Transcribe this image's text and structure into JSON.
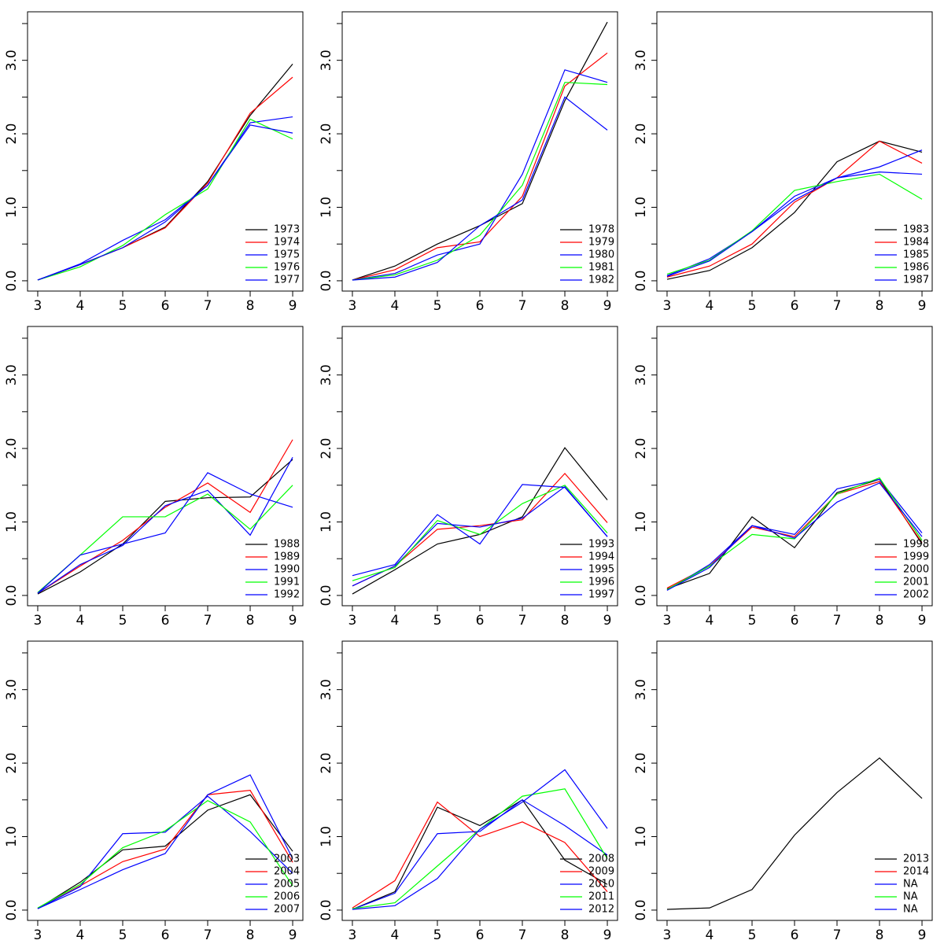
{
  "chart_data": [
    {
      "type": "line",
      "x": [
        3,
        4,
        5,
        6,
        7,
        8,
        9
      ],
      "xlim": [
        2.76,
        9.24
      ],
      "xticks": [
        3,
        4,
        5,
        6,
        7,
        8,
        9
      ],
      "ylim": [
        -0.14,
        3.66
      ],
      "yticks": [
        {
          "value": 0,
          "label": "0.0"
        },
        {
          "value": 1,
          "label": "1.0"
        },
        {
          "value": 2,
          "label": "2.0"
        },
        {
          "value": 3,
          "label": "3.0"
        }
      ],
      "yticks_minor": [
        0.5,
        1.5,
        2.5,
        3.5
      ],
      "legend": "bottomright",
      "series": [
        {
          "name": "1973",
          "color": "#000000",
          "values": [
            0.01,
            0.22,
            0.45,
            0.73,
            1.35,
            2.25,
            2.95
          ]
        },
        {
          "name": "1974",
          "color": "#ff0000",
          "values": [
            0.01,
            0.22,
            0.45,
            0.72,
            1.33,
            2.28,
            2.77
          ]
        },
        {
          "name": "1975",
          "color": "#0000ff",
          "values": [
            0.01,
            0.23,
            0.55,
            0.83,
            1.3,
            2.15,
            2.23
          ]
        },
        {
          "name": "1976",
          "color": "#00ff00",
          "values": [
            0.01,
            0.19,
            0.48,
            0.9,
            1.25,
            2.2,
            1.93
          ]
        },
        {
          "name": "1977",
          "color": "#0000ff",
          "values": [
            0.01,
            0.22,
            0.45,
            0.8,
            1.3,
            2.12,
            2.01
          ]
        }
      ]
    },
    {
      "type": "line",
      "x": [
        3,
        4,
        5,
        6,
        7,
        8,
        9
      ],
      "xlim": [
        2.76,
        9.24
      ],
      "xticks": [
        3,
        4,
        5,
        6,
        7,
        8,
        9
      ],
      "ylim": [
        -0.14,
        3.66
      ],
      "yticks": [
        {
          "value": 0,
          "label": "0.0"
        },
        {
          "value": 1,
          "label": "1.0"
        },
        {
          "value": 2,
          "label": "2.0"
        },
        {
          "value": 3,
          "label": "3.0"
        }
      ],
      "yticks_minor": [
        0.5,
        1.5,
        2.5,
        3.5
      ],
      "legend": "bottomright",
      "series": [
        {
          "name": "1978",
          "color": "#000000",
          "values": [
            0.01,
            0.2,
            0.5,
            0.75,
            1.05,
            2.45,
            3.52
          ]
        },
        {
          "name": "1979",
          "color": "#ff0000",
          "values": [
            0.01,
            0.15,
            0.45,
            0.53,
            1.15,
            2.65,
            3.1
          ]
        },
        {
          "name": "1980",
          "color": "#0000ff",
          "values": [
            0.01,
            0.1,
            0.35,
            0.5,
            1.45,
            2.87,
            2.7
          ]
        },
        {
          "name": "1981",
          "color": "#00ff00",
          "values": [
            0.01,
            0.08,
            0.28,
            0.62,
            1.3,
            2.7,
            2.67
          ]
        },
        {
          "name": "1982",
          "color": "#0000ff",
          "values": [
            0.01,
            0.05,
            0.25,
            0.75,
            1.1,
            2.5,
            2.05
          ]
        }
      ]
    },
    {
      "type": "line",
      "x": [
        3,
        4,
        5,
        6,
        7,
        8,
        9
      ],
      "xlim": [
        2.76,
        9.24
      ],
      "xticks": [
        3,
        4,
        5,
        6,
        7,
        8,
        9
      ],
      "ylim": [
        -0.14,
        3.66
      ],
      "yticks": [
        {
          "value": 0,
          "label": "0.0"
        },
        {
          "value": 1,
          "label": "1.0"
        },
        {
          "value": 2,
          "label": "2.0"
        },
        {
          "value": 3,
          "label": "3.0"
        }
      ],
      "yticks_minor": [
        0.5,
        1.5,
        2.5,
        3.5
      ],
      "legend": "bottomright",
      "series": [
        {
          "name": "1983",
          "color": "#000000",
          "values": [
            0.02,
            0.14,
            0.45,
            0.93,
            1.62,
            1.9,
            1.75
          ]
        },
        {
          "name": "1984",
          "color": "#ff0000",
          "values": [
            0.05,
            0.2,
            0.5,
            1.07,
            1.4,
            1.9,
            1.6
          ]
        },
        {
          "name": "1985",
          "color": "#0000ff",
          "values": [
            0.07,
            0.3,
            0.67,
            1.15,
            1.4,
            1.55,
            1.78
          ]
        },
        {
          "name": "1986",
          "color": "#00ff00",
          "values": [
            0.09,
            0.28,
            0.68,
            1.23,
            1.35,
            1.45,
            1.11
          ]
        },
        {
          "name": "1987",
          "color": "#0000ff",
          "values": [
            0.06,
            0.27,
            0.67,
            1.1,
            1.4,
            1.48,
            1.45
          ]
        }
      ]
    },
    {
      "type": "line",
      "x": [
        3,
        4,
        5,
        6,
        7,
        8,
        9
      ],
      "xlim": [
        2.76,
        9.24
      ],
      "xticks": [
        3,
        4,
        5,
        6,
        7,
        8,
        9
      ],
      "ylim": [
        -0.14,
        3.66
      ],
      "yticks": [
        {
          "value": 0,
          "label": "0.0"
        },
        {
          "value": 1,
          "label": "1.0"
        },
        {
          "value": 2,
          "label": "2.0"
        },
        {
          "value": 3,
          "label": "3.0"
        }
      ],
      "yticks_minor": [
        0.5,
        1.5,
        2.5,
        3.5
      ],
      "legend": "bottomright",
      "series": [
        {
          "name": "1988",
          "color": "#000000",
          "values": [
            0.02,
            0.32,
            0.7,
            1.28,
            1.33,
            1.34,
            1.85
          ]
        },
        {
          "name": "1989",
          "color": "#ff0000",
          "values": [
            0.03,
            0.4,
            0.75,
            1.2,
            1.53,
            1.13,
            2.12
          ]
        },
        {
          "name": "1990",
          "color": "#0000ff",
          "values": [
            0.03,
            0.42,
            0.68,
            1.22,
            1.43,
            0.82,
            1.88
          ]
        },
        {
          "name": "1991",
          "color": "#00ff00",
          "values": [
            0.04,
            0.55,
            1.07,
            1.07,
            1.38,
            0.9,
            1.5
          ]
        },
        {
          "name": "1992",
          "color": "#0000ff",
          "values": [
            0.03,
            0.55,
            0.7,
            0.85,
            1.67,
            1.38,
            1.2
          ]
        }
      ]
    },
    {
      "type": "line",
      "x": [
        3,
        4,
        5,
        6,
        7,
        8,
        9
      ],
      "xlim": [
        2.76,
        9.24
      ],
      "xticks": [
        3,
        4,
        5,
        6,
        7,
        8,
        9
      ],
      "ylim": [
        -0.14,
        3.66
      ],
      "yticks": [
        {
          "value": 0,
          "label": "0.0"
        },
        {
          "value": 1,
          "label": "1.0"
        },
        {
          "value": 2,
          "label": "2.0"
        },
        {
          "value": 3,
          "label": "3.0"
        }
      ],
      "yticks_minor": [
        0.5,
        1.5,
        2.5,
        3.5
      ],
      "legend": "bottomright",
      "series": [
        {
          "name": "1993",
          "color": "#000000",
          "values": [
            0.02,
            0.35,
            0.7,
            0.83,
            1.07,
            2.01,
            1.3
          ]
        },
        {
          "name": "1994",
          "color": "#ff0000",
          "values": [
            0.13,
            0.4,
            0.9,
            0.95,
            1.03,
            1.66,
            0.99
          ]
        },
        {
          "name": "1995",
          "color": "#0000ff",
          "values": [
            0.13,
            0.4,
            0.98,
            0.93,
            1.05,
            1.48,
            0.8
          ]
        },
        {
          "name": "1996",
          "color": "#00ff00",
          "values": [
            0.2,
            0.38,
            1.02,
            0.83,
            1.25,
            1.5,
            0.85
          ]
        },
        {
          "name": "1997",
          "color": "#0000ff",
          "values": [
            0.27,
            0.42,
            1.1,
            0.7,
            1.51,
            1.47,
            0.8
          ]
        }
      ]
    },
    {
      "type": "line",
      "x": [
        3,
        4,
        5,
        6,
        7,
        8,
        9
      ],
      "xlim": [
        2.76,
        9.24
      ],
      "xticks": [
        3,
        4,
        5,
        6,
        7,
        8,
        9
      ],
      "ylim": [
        -0.14,
        3.66
      ],
      "yticks": [
        {
          "value": 0,
          "label": "0.0"
        },
        {
          "value": 1,
          "label": "1.0"
        },
        {
          "value": 2,
          "label": "2.0"
        },
        {
          "value": 3,
          "label": "3.0"
        }
      ],
      "yticks_minor": [
        0.5,
        1.5,
        2.5,
        3.5
      ],
      "legend": "bottomright",
      "series": [
        {
          "name": "1998",
          "color": "#000000",
          "values": [
            0.09,
            0.3,
            1.07,
            0.65,
            1.4,
            1.58,
            0.7
          ]
        },
        {
          "name": "1999",
          "color": "#ff0000",
          "values": [
            0.1,
            0.4,
            0.93,
            0.8,
            1.38,
            1.55,
            0.72
          ]
        },
        {
          "name": "2000",
          "color": "#0000ff",
          "values": [
            0.07,
            0.42,
            0.95,
            0.83,
            1.45,
            1.58,
            0.85
          ]
        },
        {
          "name": "2001",
          "color": "#00ff00",
          "values": [
            0.08,
            0.4,
            0.83,
            0.77,
            1.38,
            1.6,
            0.75
          ]
        },
        {
          "name": "2002",
          "color": "#0000ff",
          "values": [
            0.07,
            0.38,
            0.95,
            0.78,
            1.27,
            1.53,
            0.8
          ]
        }
      ]
    },
    {
      "type": "line",
      "x": [
        3,
        4,
        5,
        6,
        7,
        8,
        9
      ],
      "xlim": [
        2.76,
        9.24
      ],
      "xticks": [
        3,
        4,
        5,
        6,
        7,
        8,
        9
      ],
      "ylim": [
        -0.14,
        3.66
      ],
      "yticks": [
        {
          "value": 0,
          "label": "0.0"
        },
        {
          "value": 1,
          "label": "1.0"
        },
        {
          "value": 2,
          "label": "2.0"
        },
        {
          "value": 3,
          "label": "3.0"
        }
      ],
      "yticks_minor": [
        0.5,
        1.5,
        2.5,
        3.5
      ],
      "legend": "bottomright",
      "series": [
        {
          "name": "2003",
          "color": "#000000",
          "values": [
            0.02,
            0.38,
            0.82,
            0.87,
            1.36,
            1.57,
            0.8
          ]
        },
        {
          "name": "2004",
          "color": "#ff0000",
          "values": [
            0.02,
            0.33,
            0.66,
            0.83,
            1.57,
            1.63,
            0.65
          ]
        },
        {
          "name": "2005",
          "color": "#0000ff",
          "values": [
            0.02,
            0.32,
            1.04,
            1.06,
            1.55,
            1.07,
            0.5
          ]
        },
        {
          "name": "2006",
          "color": "#00ff00",
          "values": [
            0.03,
            0.35,
            0.85,
            1.08,
            1.49,
            1.2,
            0.33
          ]
        },
        {
          "name": "2007",
          "color": "#0000ff",
          "values": [
            0.02,
            0.28,
            0.55,
            0.77,
            1.57,
            1.84,
            0.7
          ]
        }
      ]
    },
    {
      "type": "line",
      "x": [
        3,
        4,
        5,
        6,
        7,
        8,
        9
      ],
      "xlim": [
        2.76,
        9.24
      ],
      "xticks": [
        3,
        4,
        5,
        6,
        7,
        8,
        9
      ],
      "ylim": [
        -0.14,
        3.66
      ],
      "yticks": [
        {
          "value": 0,
          "label": "0.0"
        },
        {
          "value": 1,
          "label": "1.0"
        },
        {
          "value": 2,
          "label": "2.0"
        },
        {
          "value": 3,
          "label": "3.0"
        }
      ],
      "yticks_minor": [
        0.5,
        1.5,
        2.5,
        3.5
      ],
      "legend": "bottomright",
      "series": [
        {
          "name": "2008",
          "color": "#000000",
          "values": [
            0.01,
            0.25,
            1.4,
            1.15,
            1.5,
            0.68,
            0.35
          ]
        },
        {
          "name": "2009",
          "color": "#ff0000",
          "values": [
            0.03,
            0.4,
            1.47,
            1.0,
            1.2,
            0.92,
            0.25
          ]
        },
        {
          "name": "2010",
          "color": "#0000ff",
          "values": [
            0.01,
            0.23,
            1.04,
            1.07,
            1.5,
            1.15,
            0.75
          ]
        },
        {
          "name": "2011",
          "color": "#00ff00",
          "values": [
            0.02,
            0.1,
            0.6,
            1.1,
            1.55,
            1.65,
            0.7
          ]
        },
        {
          "name": "2012",
          "color": "#0000ff",
          "values": [
            0.01,
            0.06,
            0.43,
            1.1,
            1.47,
            1.91,
            1.11
          ]
        }
      ]
    },
    {
      "type": "line",
      "x": [
        3,
        4,
        5,
        6,
        7,
        8,
        9
      ],
      "xlim": [
        2.76,
        9.24
      ],
      "xticks": [
        3,
        4,
        5,
        6,
        7,
        8,
        9
      ],
      "ylim": [
        -0.14,
        3.66
      ],
      "yticks": [
        {
          "value": 0,
          "label": "0.0"
        },
        {
          "value": 1,
          "label": "1.0"
        },
        {
          "value": 2,
          "label": "2.0"
        },
        {
          "value": 3,
          "label": "3.0"
        }
      ],
      "yticks_minor": [
        0.5,
        1.5,
        2.5,
        3.5
      ],
      "legend": "bottomright",
      "series": [
        {
          "name": "2013",
          "color": "#000000",
          "values": [
            0.01,
            0.03,
            0.28,
            1.02,
            1.6,
            2.07,
            1.52
          ]
        },
        {
          "name": "2014",
          "color": "#ff0000",
          "values": [
            null,
            null,
            null,
            null,
            null,
            null,
            null
          ]
        },
        {
          "name": "NA",
          "color": "#0000ff",
          "values": [
            null,
            null,
            null,
            null,
            null,
            null,
            null
          ]
        },
        {
          "name": "NA",
          "color": "#00ff00",
          "values": [
            null,
            null,
            null,
            null,
            null,
            null,
            null
          ]
        },
        {
          "name": "NA",
          "color": "#0000ff",
          "values": [
            null,
            null,
            null,
            null,
            null,
            null,
            null
          ]
        }
      ]
    }
  ]
}
